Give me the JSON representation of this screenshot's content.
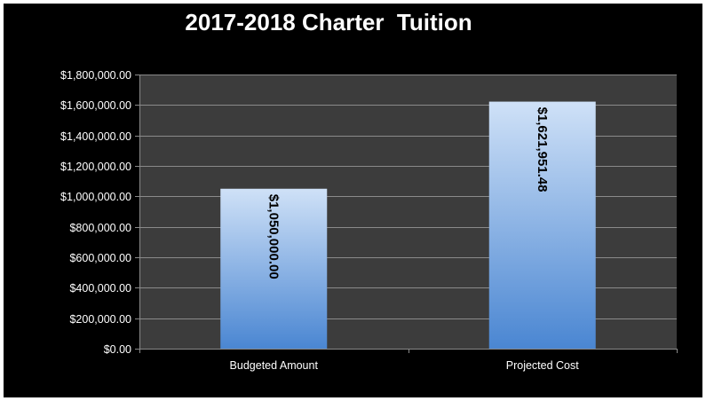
{
  "chart_data": {
    "type": "bar",
    "title": "2017-2018 Charter  Tuition",
    "categories": [
      "Budgeted Amount",
      "Projected Cost"
    ],
    "values": [
      1050000.0,
      1621951.48
    ],
    "data_labels": [
      "$1,050,000.00",
      "$1,621,951.48"
    ],
    "ylim": [
      0,
      1800000
    ],
    "y_ticks": [
      {
        "value": 0,
        "label": "$0.00"
      },
      {
        "value": 200000,
        "label": "$200,000.00"
      },
      {
        "value": 400000,
        "label": "$400,000.00"
      },
      {
        "value": 600000,
        "label": "$600,000.00"
      },
      {
        "value": 800000,
        "label": "$800,000.00"
      },
      {
        "value": 1000000,
        "label": "$1,000,000.00"
      },
      {
        "value": 1200000,
        "label": "$1,200,000.00"
      },
      {
        "value": 1400000,
        "label": "$1,400,000.00"
      },
      {
        "value": 1600000,
        "label": "$1,600,000.00"
      },
      {
        "value": 1800000,
        "label": "$1,800,000.00"
      }
    ],
    "xlabel": "",
    "ylabel": "",
    "grid": true,
    "legend": "none",
    "colors": {
      "background": "#000000",
      "plot_area": "#3c3c3c",
      "gridline": "#8a8a8a",
      "bar_top": "#cfe1f7",
      "bar_bottom": "#4a86d2",
      "text": "#ffffff",
      "data_label": "#000000"
    }
  }
}
